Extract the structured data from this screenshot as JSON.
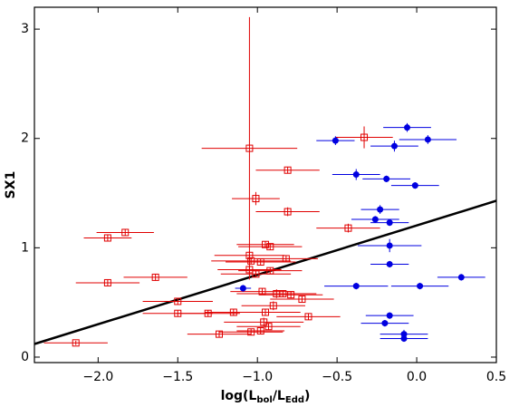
{
  "chart_data": {
    "type": "scatter",
    "ylabel": "SX1",
    "xlabel": [
      "log(L",
      "bol",
      "/L",
      "Edd",
      ")"
    ],
    "xlim": [
      -2.4,
      0.5
    ],
    "ylim": [
      -0.05,
      3.2
    ],
    "xticks": [
      {
        "value": -2.0,
        "label": "−2.0"
      },
      {
        "value": -1.5,
        "label": "−1.5"
      },
      {
        "value": -1.0,
        "label": "−1.0"
      },
      {
        "value": -0.5,
        "label": "−0.5"
      },
      {
        "value": 0.0,
        "label": "0.0"
      },
      {
        "value": 0.5,
        "label": "0.5"
      }
    ],
    "yticks": [
      0,
      1,
      2,
      3
    ],
    "fit": {
      "color": "#000000",
      "x": [
        -2.4,
        0.5
      ],
      "values": [
        0.12,
        1.43
      ]
    },
    "series": [
      {
        "color": "#e00000",
        "marker": "square-open",
        "x": [
          -2.14,
          -1.94,
          -1.83,
          -1.94,
          -1.64,
          -1.5,
          -1.5,
          -1.31,
          -1.24,
          -1.05,
          -1.01,
          -0.81,
          -0.81,
          -0.95,
          -0.92,
          -1.05,
          -1.04,
          -0.98,
          -1.05,
          -0.82,
          -1.01,
          -0.92,
          -1.04,
          -0.98,
          -0.96,
          -0.93,
          -0.95,
          -0.9,
          -0.88,
          -0.84,
          -0.79,
          -0.72,
          -0.68,
          -1.15,
          -0.97,
          -0.43,
          -0.33
        ],
        "values": [
          0.13,
          1.09,
          1.14,
          0.68,
          0.73,
          0.51,
          0.4,
          0.4,
          0.21,
          1.91,
          1.45,
          1.71,
          1.33,
          1.03,
          1.01,
          0.93,
          0.88,
          0.87,
          0.8,
          0.9,
          0.76,
          0.79,
          0.23,
          0.24,
          0.32,
          0.28,
          0.41,
          0.47,
          0.58,
          0.58,
          0.57,
          0.53,
          0.37,
          0.41,
          0.6,
          1.18,
          2.01
        ],
        "xerr": [
          0.2,
          0.15,
          0.18,
          0.2,
          0.2,
          0.22,
          0.22,
          0.2,
          0.2,
          0.3,
          0.15,
          0.2,
          0.2,
          0.18,
          0.2,
          0.22,
          0.25,
          0.22,
          0.2,
          0.2,
          0.22,
          0.2,
          0.2,
          0.15,
          0.25,
          0.2,
          0.22,
          0.2,
          0.25,
          0.2,
          0.2,
          0.2,
          0.2,
          0.18,
          0.2,
          0.2,
          0.18
        ],
        "yerr": [
          0.02,
          0.03,
          0.03,
          0.03,
          0.03,
          0.03,
          0.03,
          0.03,
          0.03,
          1.2,
          0.06,
          0.03,
          0.04,
          0.03,
          0.03,
          0.04,
          0.03,
          0.03,
          0.03,
          0.03,
          0.03,
          0.03,
          0.03,
          0.03,
          0.04,
          0.03,
          0.03,
          0.04,
          0.04,
          0.03,
          0.03,
          0.03,
          0.03,
          0.03,
          0.03,
          0.04,
          0.1
        ]
      },
      {
        "color": "#0000e0",
        "marker": "circle",
        "x": [
          -0.06,
          0.07,
          -0.51,
          -0.14,
          -0.38,
          -0.19,
          -0.01,
          -0.23,
          -0.26,
          -0.17,
          -0.17,
          -0.17,
          0.28,
          0.02,
          -0.38,
          -1.09,
          -0.17,
          -0.2,
          -0.08,
          -0.08
        ],
        "values": [
          2.1,
          1.99,
          1.98,
          1.93,
          1.67,
          1.63,
          1.57,
          1.35,
          1.26,
          1.23,
          1.02,
          0.85,
          0.73,
          0.65,
          0.65,
          0.63,
          0.38,
          0.31,
          0.21,
          0.17
        ],
        "xerr": [
          0.15,
          0.18,
          0.12,
          0.15,
          0.15,
          0.15,
          0.15,
          0.12,
          0.15,
          0.12,
          0.2,
          0.12,
          0.15,
          0.18,
          0.2,
          0.05,
          0.15,
          0.15,
          0.15,
          0.15
        ],
        "yerr": [
          0.04,
          0.04,
          0.04,
          0.05,
          0.05,
          0.03,
          0.03,
          0.04,
          0.03,
          0.03,
          0.06,
          0.03,
          0.03,
          0.03,
          0.03,
          0.03,
          0.03,
          0.03,
          0.04,
          0.03
        ]
      }
    ]
  }
}
